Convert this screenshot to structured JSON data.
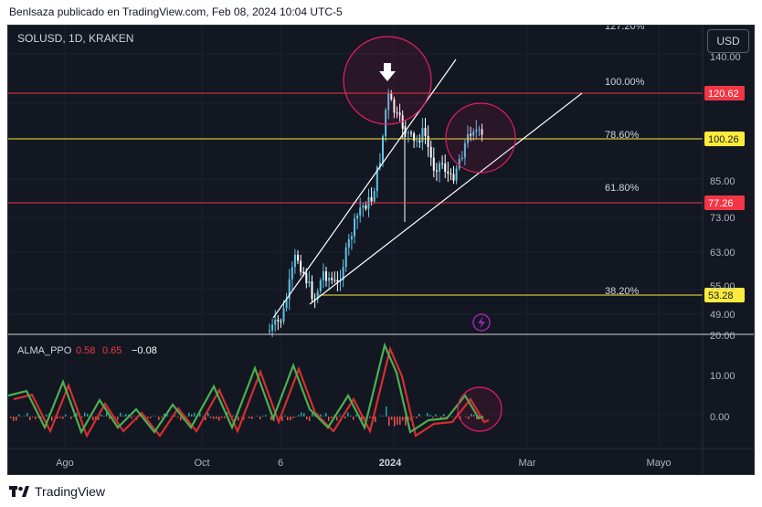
{
  "caption": "Benlsaza publicado en TradingView.com, Feb 08, 2024 10:04 UTC-5",
  "footer": {
    "brand": "TradingView"
  },
  "currency_button": "USD",
  "chart_data": {
    "type": "candlestick",
    "symbol_label": "SOLUSD, 1D, KRAKEN",
    "price_axis_ticks": [
      "140.00",
      "85.00",
      "73.00",
      "63.00",
      "55.00",
      "49.00"
    ],
    "price_labels": [
      {
        "value": "120.62",
        "color": "#f23645"
      },
      {
        "value": "100.26",
        "color": "#ffeb3b"
      },
      {
        "value": "77.26",
        "color": "#f23645"
      },
      {
        "value": "53.28",
        "color": "#ffeb3b"
      }
    ],
    "fib_levels": [
      {
        "label": "127.20%"
      },
      {
        "label": "100.00%"
      },
      {
        "label": "78.60%"
      },
      {
        "label": "61.80%"
      },
      {
        "label": "38.20%"
      }
    ],
    "x_axis_ticks": [
      "Ago",
      "Oct",
      "6",
      "2024",
      "Mar",
      "Mayo"
    ],
    "indicator": {
      "name": "ALMA_PPO",
      "values": [
        "0.58",
        "0.65",
        "−0.08"
      ],
      "value_colors": [
        "#f23645",
        "#f23645",
        "#ffffff"
      ],
      "axis_ticks": [
        "20.00",
        "10.00",
        "0.00"
      ]
    },
    "colors": {
      "up": "#5fc3e4",
      "down": "#ffffff",
      "fast_line": "#4caf50",
      "slow_line": "#d32f2f",
      "circle": "#e91e63",
      "trend": "#ffffff"
    }
  }
}
